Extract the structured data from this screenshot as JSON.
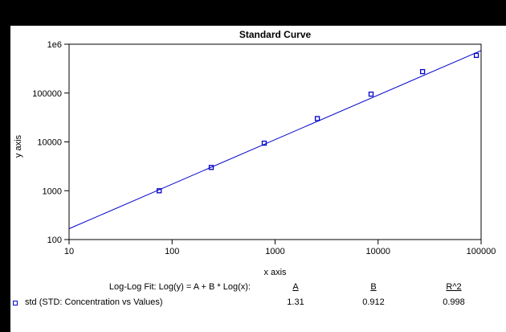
{
  "window": {
    "background": "#000000",
    "panel_background": "#ffffff"
  },
  "chart_data": {
    "type": "scatter",
    "title": "Standard Curve",
    "xlabel": "x axis",
    "ylabel": "y axis",
    "x_scale": "log",
    "y_scale": "log",
    "xlim": [
      10,
      100000
    ],
    "ylim": [
      100,
      1000000
    ],
    "x_ticks": [
      "10",
      "100",
      "1000",
      "10000",
      "100000"
    ],
    "y_ticks": [
      "1e6",
      "100000",
      "10000",
      "1000",
      "100"
    ],
    "grid": false,
    "legend_position": "bottom-left",
    "line_color": "#0000cc",
    "marker_color": "#0000cc",
    "series": [
      {
        "name": "std",
        "marker": "open-square",
        "points_x": [
          75,
          240,
          785,
          2570,
          8550,
          27000,
          90000
        ],
        "points_y": [
          1000,
          3000,
          9400,
          30000,
          95000,
          275000,
          590000
        ]
      }
    ],
    "fit": {
      "model": "Log(y) = A + B * Log(x)",
      "A": 1.31,
      "B": 0.912,
      "R2": 0.998
    }
  },
  "footer": {
    "fit_label": "Log-Log Fit: Log(y) = A + B * Log(x):",
    "col_headers": {
      "A": "A",
      "B": "B",
      "R2": "R^2"
    },
    "values": {
      "A": "1.31",
      "B": "0.912",
      "R2": "0.998"
    },
    "legend_label": "std (STD: Concentration vs Values)"
  }
}
